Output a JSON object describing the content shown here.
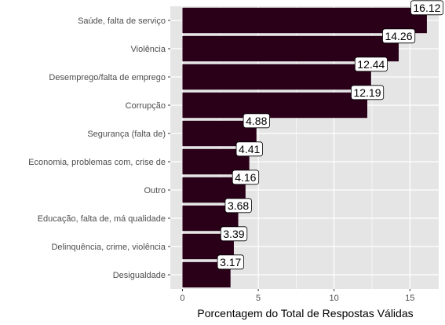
{
  "chart_data": {
    "type": "bar",
    "orientation": "horizontal",
    "categories": [
      "Saúde, falta de serviço",
      "Violência",
      "Desemprego/falta de emprego",
      "Corrupção",
      "Segurança (falta de)",
      "Economia, problemas com, crise de",
      "Outro",
      "Educação, falta de, má qualidade",
      "Delinquência, crime, violência",
      "Desigualdade"
    ],
    "values": [
      16.12,
      14.26,
      12.44,
      12.19,
      4.88,
      4.41,
      4.16,
      3.68,
      3.39,
      3.17
    ],
    "data_labels": [
      "16.12",
      "14.26",
      "12.44",
      "12.19",
      "4.88",
      "4.41",
      "4.16",
      "3.68",
      "3.39",
      "3.17"
    ],
    "xlabel": "Porcentagem do Total de Respostas Válidas",
    "xlim": [
      -0.8,
      16.9
    ],
    "xticks": [
      0,
      5,
      10,
      15
    ],
    "xtick_labels": [
      "0",
      "5",
      "10",
      "15"
    ],
    "grid": true,
    "colors": {
      "bar": "#2a0019",
      "panel": "#e5e5e5",
      "grid": "#ffffff",
      "label_box_fill": "#ffffff",
      "label_box_stroke": "#000000"
    }
  }
}
